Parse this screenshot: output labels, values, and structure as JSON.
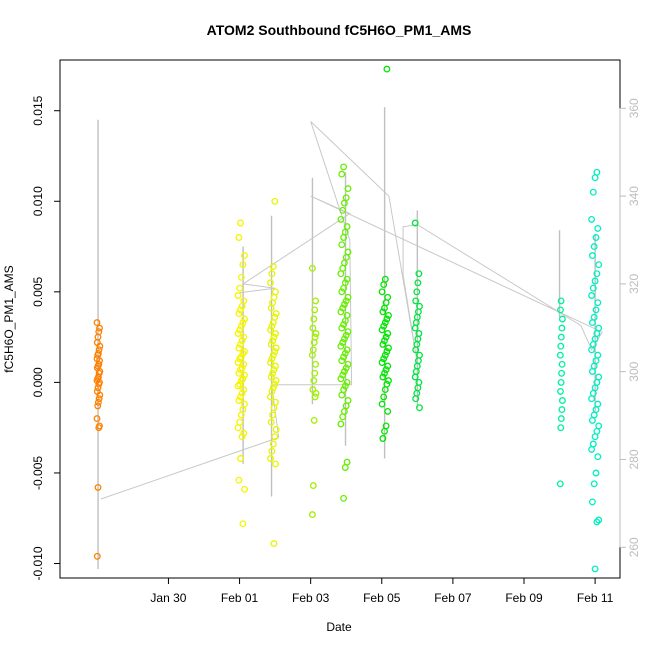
{
  "chart_data": {
    "type": "scatter",
    "title": "ATOM2 Southbound fC5H6O_PM1_AMS",
    "xlabel": "Date",
    "ylabel": "fC5H6O_PM1_AMS",
    "x_unit": "days since Jan 29 00:00",
    "xlim": [
      -2.05,
      13.7
    ],
    "ylim": [
      -0.0108,
      0.0178
    ],
    "y2lim": [
      253.0,
      371.0
    ],
    "x_ticks": [
      {
        "x": 1,
        "label": "Jan 30"
      },
      {
        "x": 3,
        "label": "Feb 01"
      },
      {
        "x": 5,
        "label": "Feb 03"
      },
      {
        "x": 7,
        "label": "Feb 05"
      },
      {
        "x": 9,
        "label": "Feb 07"
      },
      {
        "x": 11,
        "label": "Feb 09"
      },
      {
        "x": 13,
        "label": "Feb 11"
      }
    ],
    "y_ticks": [
      {
        "v": -0.01,
        "label": "-0.010"
      },
      {
        "v": -0.005,
        "label": "-0.005"
      },
      {
        "v": 0.0,
        "label": "0.000"
      },
      {
        "v": 0.005,
        "label": "0.005"
      },
      {
        "v": 0.01,
        "label": "0.010"
      },
      {
        "v": 0.015,
        "label": "0.015"
      }
    ],
    "y2_ticks": [
      {
        "v": 260,
        "label": "260"
      },
      {
        "v": 280,
        "label": "280"
      },
      {
        "v": 300,
        "label": "300"
      },
      {
        "v": 320,
        "label": "320"
      },
      {
        "v": 340,
        "label": "340"
      },
      {
        "v": 360,
        "label": "360"
      }
    ],
    "clusters": [
      {
        "x": -0.97,
        "spread": 0.04,
        "color": "#ff8000",
        "values": [
          0.0033,
          0.003,
          0.0028,
          0.0025,
          0.0022,
          0.002,
          0.0018,
          0.0016,
          0.0015,
          0.0013,
          0.0012,
          0.001,
          0.0009,
          0.0008,
          0.0006,
          0.0005,
          0.0003,
          0.0002,
          0.0001,
          0.0,
          -0.0001,
          -0.0003,
          -0.0005,
          -0.0007,
          -0.0009,
          -0.0011,
          -0.0013,
          -0.002,
          -0.0024,
          -0.0025,
          -0.0058,
          -0.0096
        ]
      },
      {
        "x": 3.05,
        "spread": 0.09,
        "color": "#f5f500",
        "values": [
          0.0088,
          0.008,
          0.007,
          0.0065,
          0.0058,
          0.0052,
          0.0048,
          0.0045,
          0.0042,
          0.004,
          0.0038,
          0.0035,
          0.0033,
          0.0031,
          0.0029,
          0.0027,
          0.0025,
          0.0023,
          0.0021,
          0.0019,
          0.0017,
          0.0016,
          0.0014,
          0.0013,
          0.0011,
          0.001,
          0.0008,
          0.0007,
          0.0005,
          0.0004,
          0.0002,
          0.0001,
          -0.0001,
          -0.0002,
          -0.0004,
          -0.0006,
          -0.0008,
          -0.001,
          -0.0012,
          -0.0015,
          -0.0018,
          -0.0022,
          -0.0025,
          -0.0028,
          -0.003,
          -0.0042,
          -0.0054,
          -0.0059,
          -0.0078
        ]
      },
      {
        "x": 3.95,
        "spread": 0.08,
        "color": "#e6f500",
        "values": [
          0.01,
          0.0064,
          0.006,
          0.0055,
          0.005,
          0.0047,
          0.0044,
          0.0041,
          0.0038,
          0.0036,
          0.0033,
          0.0031,
          0.0029,
          0.0027,
          0.0025,
          0.0023,
          0.0021,
          0.0019,
          0.0017,
          0.0015,
          0.0013,
          0.0011,
          0.0009,
          0.0007,
          0.0005,
          0.0003,
          0.0001,
          -0.0001,
          -0.0003,
          -0.0005,
          -0.0008,
          -0.0011,
          -0.0014,
          -0.0018,
          -0.0022,
          -0.0026,
          -0.003,
          -0.0034,
          -0.0038,
          -0.0042,
          -0.0045,
          -0.0089
        ]
      },
      {
        "x": 5.1,
        "spread": 0.05,
        "color": "#a0f000",
        "values": [
          0.0063,
          0.0045,
          0.004,
          0.0035,
          0.003,
          0.0027,
          0.0025,
          0.0022,
          0.0018,
          0.0015,
          0.001,
          0.0005,
          0.0001,
          -0.0004,
          -0.0006,
          -0.0008,
          -0.0021,
          -0.0057,
          -0.0073
        ]
      },
      {
        "x": 5.95,
        "spread": 0.1,
        "color": "#66f000",
        "values": [
          0.0119,
          0.0115,
          0.0107,
          0.0102,
          0.0099,
          0.0095,
          0.009,
          0.0086,
          0.0083,
          0.008,
          0.0076,
          0.0072,
          0.0069,
          0.0066,
          0.0063,
          0.006,
          0.0057,
          0.0055,
          0.0052,
          0.005,
          0.0047,
          0.0045,
          0.0043,
          0.0041,
          0.0039,
          0.0037,
          0.0034,
          0.0032,
          0.003,
          0.0028,
          0.0026,
          0.0024,
          0.0022,
          0.002,
          0.0018,
          0.0016,
          0.0014,
          0.0012,
          0.001,
          0.0008,
          0.0006,
          0.0004,
          0.0002,
          0.0,
          -0.0002,
          -0.0004,
          -0.0007,
          -0.001,
          -0.0013,
          -0.0016,
          -0.0019,
          -0.0023,
          -0.0044,
          -0.0047,
          -0.0064
        ]
      },
      {
        "x": 7.1,
        "spread": 0.09,
        "color": "#00e600",
        "values": [
          0.0173,
          0.0057,
          0.0054,
          0.005,
          0.0047,
          0.0044,
          0.0041,
          0.0039,
          0.0037,
          0.0035,
          0.0033,
          0.0031,
          0.0029,
          0.0027,
          0.0025,
          0.0023,
          0.0021,
          0.0019,
          0.0017,
          0.0015,
          0.0013,
          0.0011,
          0.0009,
          0.0007,
          0.0005,
          0.0003,
          0.0001,
          -0.0001,
          -0.0004,
          -0.0008,
          -0.0012,
          -0.0016,
          -0.0024,
          -0.0027,
          -0.0031
        ]
      },
      {
        "x": 8.0,
        "spread": 0.06,
        "color": "#00e640",
        "values": [
          0.0088,
          0.006,
          0.0055,
          0.005,
          0.0045,
          0.0042,
          0.0039,
          0.0036,
          0.0033,
          0.003,
          0.0027,
          0.0024,
          0.0021,
          0.0018,
          0.0015,
          0.0012,
          0.0009,
          0.0006,
          0.0003,
          0.0,
          -0.0003,
          -0.0006,
          -0.0009,
          -0.0014
        ]
      },
      {
        "x": 12.05,
        "spread": 0.03,
        "color": "#00f0a0",
        "values": [
          0.0045,
          0.004,
          0.0035,
          0.003,
          0.0025,
          0.002,
          0.0015,
          0.001,
          0.0005,
          0.0,
          -0.0005,
          -0.001,
          -0.0015,
          -0.002,
          -0.0025,
          -0.0056
        ]
      },
      {
        "x": 13.0,
        "spread": 0.1,
        "color": "#00f0c0",
        "values": [
          0.0116,
          0.0113,
          0.0105,
          0.009,
          0.0085,
          0.008,
          0.0075,
          0.007,
          0.0065,
          0.006,
          0.0056,
          0.0052,
          0.0048,
          0.0044,
          0.004,
          0.0036,
          0.0033,
          0.003,
          0.0027,
          0.0024,
          0.0021,
          0.0018,
          0.0015,
          0.0012,
          0.0009,
          0.0006,
          0.0003,
          0.0,
          -0.0003,
          -0.0006,
          -0.0009,
          -0.0012,
          -0.0015,
          -0.0018,
          -0.0021,
          -0.0024,
          -0.0027,
          -0.003,
          -0.0034,
          -0.0037,
          -0.0041,
          -0.005,
          -0.0056,
          -0.0066,
          -0.0076,
          -0.0077,
          -0.0103
        ]
      }
    ],
    "trend_line": {
      "color": "#c8c8c8",
      "points": [
        [
          -0.9,
          271.0
        ],
        [
          4.1,
          285.0
        ],
        [
          3.9,
          297.0
        ],
        [
          5.0,
          297.0
        ],
        [
          6.15,
          297.0
        ],
        [
          6.1,
          330.0
        ],
        [
          5.0,
          357.0
        ],
        [
          7.2,
          340.0
        ],
        [
          8.0,
          302.0
        ],
        [
          7.6,
          322.0
        ],
        [
          7.6,
          333.0
        ],
        [
          8.0,
          333.5
        ],
        [
          12.6,
          310.5
        ],
        [
          12.9,
          305.0
        ],
        [
          13.2,
          309.0
        ],
        [
          5.0,
          340.0
        ],
        [
          6.1,
          336.0
        ],
        [
          3.1,
          320.0
        ],
        [
          4.0,
          319.0
        ],
        [
          3.0,
          318.0
        ]
      ]
    },
    "spikes": [
      {
        "x": -0.98,
        "low": -0.0103,
        "high": 0.0145
      },
      {
        "x": 3.1,
        "low": -0.0045,
        "high": 0.0075
      },
      {
        "x": 3.9,
        "low": -0.0063,
        "high": 0.0092
      },
      {
        "x": 5.05,
        "low": -0.0012,
        "high": 0.0113
      },
      {
        "x": 5.98,
        "low": -0.0035,
        "high": 0.0116
      },
      {
        "x": 7.08,
        "low": -0.0042,
        "high": 0.0152
      },
      {
        "x": 8.0,
        "low": -0.0014,
        "high": 0.0095
      },
      {
        "x": 12.0,
        "low": 0.0036,
        "high": 0.0084
      },
      {
        "x": 13.0,
        "low": -0.0016,
        "high": 0.0082
      }
    ]
  }
}
